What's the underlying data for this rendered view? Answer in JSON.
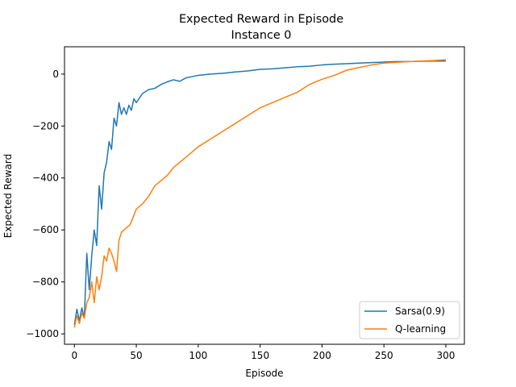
{
  "chart_data": {
    "type": "line",
    "title": "Expected Reward in Episode",
    "subtitle": "Instance 0",
    "xlabel": "Episode",
    "ylabel": "Expected Reward",
    "xlim": [
      -8,
      315
    ],
    "ylim": [
      -1040,
      105
    ],
    "xticks": [
      0,
      50,
      100,
      150,
      200,
      250,
      300
    ],
    "yticks": [
      -1000,
      -800,
      -600,
      -400,
      -200,
      0
    ],
    "grid": false,
    "legend_position": "lower-right",
    "series": [
      {
        "name": "Sarsa(0.9)",
        "color": "#1f77b4",
        "x": [
          0,
          2,
          4,
          6,
          8,
          10,
          12,
          14,
          16,
          18,
          20,
          22,
          24,
          26,
          28,
          30,
          32,
          34,
          36,
          38,
          40,
          42,
          44,
          46,
          48,
          50,
          55,
          60,
          65,
          70,
          75,
          80,
          85,
          90,
          95,
          100,
          110,
          120,
          130,
          140,
          150,
          160,
          170,
          180,
          190,
          200,
          210,
          220,
          230,
          240,
          250,
          260,
          270,
          280,
          290,
          300
        ],
        "values": [
          -965,
          -905,
          -950,
          -900,
          -940,
          -690,
          -830,
          -700,
          -600,
          -660,
          -430,
          -520,
          -380,
          -340,
          -260,
          -290,
          -170,
          -200,
          -110,
          -155,
          -130,
          -155,
          -120,
          -140,
          -95,
          -110,
          -75,
          -60,
          -55,
          -40,
          -30,
          -22,
          -28,
          -15,
          -10,
          -5,
          0,
          3,
          8,
          12,
          18,
          20,
          24,
          28,
          30,
          35,
          38,
          40,
          42,
          44,
          46,
          48,
          48,
          49,
          50,
          50
        ]
      },
      {
        "name": "Q-learning",
        "color": "#ff7f0e",
        "x": [
          0,
          2,
          4,
          6,
          8,
          10,
          12,
          14,
          16,
          18,
          20,
          22,
          24,
          26,
          28,
          30,
          32,
          34,
          36,
          38,
          40,
          45,
          50,
          55,
          60,
          65,
          70,
          75,
          80,
          85,
          90,
          95,
          100,
          110,
          120,
          130,
          140,
          150,
          160,
          170,
          180,
          190,
          200,
          210,
          220,
          230,
          240,
          250,
          260,
          270,
          280,
          290,
          300
        ],
        "values": [
          -975,
          -930,
          -960,
          -920,
          -940,
          -880,
          -860,
          -800,
          -880,
          -780,
          -830,
          -780,
          -700,
          -720,
          -670,
          -690,
          -720,
          -760,
          -640,
          -610,
          -600,
          -580,
          -520,
          -500,
          -470,
          -430,
          -410,
          -390,
          -360,
          -340,
          -320,
          -300,
          -280,
          -250,
          -220,
          -190,
          -160,
          -130,
          -110,
          -90,
          -70,
          -40,
          -20,
          -5,
          15,
          25,
          35,
          42,
          45,
          48,
          50,
          52,
          55
        ]
      }
    ]
  }
}
